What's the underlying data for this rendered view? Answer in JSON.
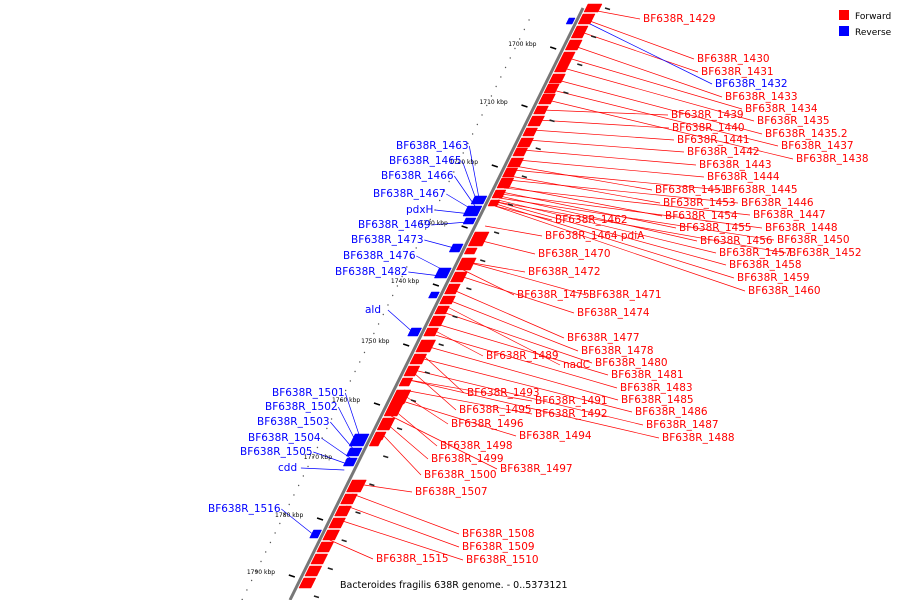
{
  "legend": [
    {
      "label": "Forward",
      "color": "#ff0000"
    },
    {
      "label": "Reverse",
      "color": "#0000ff"
    }
  ],
  "footer": "Bacteroides fragilis 638R genome. - 0..5373121",
  "ticks": [
    "1700 kbp",
    "1710 kbp",
    "1720 kbp",
    "1730 kbp",
    "1740 kbp",
    "1750 kbp",
    "1760 kbp",
    "1770 kbp",
    "1780 kbp",
    "1790 kbp"
  ],
  "forward_genes": [
    "BF638R_1429",
    "BF638R_1430",
    "BF638R_1431",
    "BF638R_1433",
    "BF638R_1434",
    "BF638R_1435",
    "BF638R_1435.2",
    "BF638R_1437",
    "BF638R_1438",
    "BF638R_1439",
    "BF638R_1440",
    "BF638R_1441",
    "BF638R_1442",
    "BF638R_1443",
    "BF638R_1444",
    "BF638R_1445",
    "BF638R_1446",
    "BF638R_1447",
    "BF638R_1448",
    "BF638R_1450",
    "BF638R_1451",
    "BF638R_1452",
    "BF638R_1453",
    "BF638R_1454",
    "BF638R_1455",
    "BF638R_1456",
    "BF638R_1457",
    "BF638R_1458",
    "BF638R_1459",
    "BF638R_1460",
    "BF638R_1462",
    "BF638R_1464 pdiA",
    "BF638R_1470",
    "BF638R_1471",
    "BF638R_1472",
    "BF638R_1474",
    "BF638R_1475",
    "BF638R_1477",
    "BF638R_1478",
    "BF638R_1480",
    "nadC",
    "BF638R_1481",
    "BF638R_1483",
    "BF638R_1485",
    "BF638R_1486",
    "BF638R_1487",
    "BF638R_1488",
    "BF638R_1489",
    "BF638R_1491",
    "BF638R_1492",
    "BF638R_1493",
    "BF638R_1494",
    "BF638R_1495",
    "BF638R_1496",
    "BF638R_1497",
    "BF638R_1498",
    "BF638R_1499",
    "BF638R_1500",
    "BF638R_1507",
    "BF638R_1508",
    "BF638R_1509",
    "BF638R_1510",
    "BF638R_1515"
  ],
  "reverse_genes": [
    "BF638R_1432",
    "BF638R_1463",
    "BF638R_1465",
    "BF638R_1466",
    "BF638R_1467",
    "pdxH",
    "BF638R_1469",
    "BF638R_1473",
    "BF638R_1476",
    "BF638R_1482",
    "ald",
    "BF638R_1501",
    "BF638R_1502",
    "BF638R_1503",
    "BF638R_1504",
    "BF638R_1505",
    "cdd",
    "BF638R_1516"
  ]
}
